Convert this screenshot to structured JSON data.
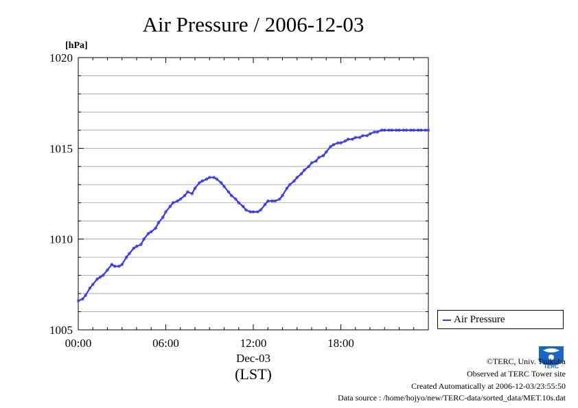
{
  "chart_data": {
    "type": "line",
    "title": "Air Pressure / 2006-12-03",
    "ylabel": "[hPa]",
    "xlabel": "(LST)",
    "x_sublabel": "Dec-03",
    "ylim": [
      1005,
      1020
    ],
    "xlim_hours": [
      0,
      24
    ],
    "y_ticks": [
      "1005",
      "1010",
      "1015",
      "1020"
    ],
    "x_ticks": [
      "00:00",
      "06:00",
      "12:00",
      "18:00"
    ],
    "grid": true,
    "legend_position": "right-bottom",
    "series": [
      {
        "name": "Air Pressure",
        "color": "#3333ff",
        "x_hours": [
          0.0,
          0.3,
          0.5,
          0.8,
          1.0,
          1.3,
          1.5,
          1.7,
          2.0,
          2.3,
          2.5,
          2.8,
          3.0,
          3.3,
          3.5,
          3.8,
          4.0,
          4.3,
          4.5,
          4.8,
          5.0,
          5.3,
          5.5,
          5.8,
          6.0,
          6.3,
          6.5,
          6.8,
          7.0,
          7.3,
          7.5,
          7.8,
          8.0,
          8.3,
          8.5,
          8.8,
          9.0,
          9.3,
          9.5,
          9.8,
          10.0,
          10.3,
          10.5,
          10.8,
          11.0,
          11.3,
          11.5,
          11.8,
          12.0,
          12.3,
          12.5,
          12.8,
          13.0,
          13.3,
          13.5,
          13.8,
          14.0,
          14.3,
          14.5,
          14.8,
          15.0,
          15.3,
          15.5,
          15.8,
          16.0,
          16.3,
          16.5,
          16.8,
          17.0,
          17.3,
          17.5,
          17.8,
          18.0,
          18.3,
          18.5,
          18.8,
          19.0,
          19.3,
          19.5,
          19.8,
          20.0,
          20.3,
          20.5,
          20.8,
          21.0,
          21.3,
          21.5,
          21.8,
          22.0,
          22.3,
          22.5,
          22.8,
          23.0,
          23.3,
          23.5,
          23.8,
          24.0
        ],
        "values": [
          1006.6,
          1006.7,
          1006.9,
          1007.3,
          1007.5,
          1007.8,
          1007.9,
          1008.0,
          1008.3,
          1008.6,
          1008.5,
          1008.5,
          1008.6,
          1009.0,
          1009.2,
          1009.5,
          1009.6,
          1009.7,
          1010.0,
          1010.3,
          1010.4,
          1010.6,
          1010.9,
          1011.2,
          1011.5,
          1011.8,
          1012.0,
          1012.1,
          1012.2,
          1012.4,
          1012.6,
          1012.5,
          1012.8,
          1013.1,
          1013.2,
          1013.3,
          1013.4,
          1013.4,
          1013.3,
          1013.1,
          1012.9,
          1012.6,
          1012.4,
          1012.2,
          1012.0,
          1011.8,
          1011.6,
          1011.5,
          1011.5,
          1011.5,
          1011.6,
          1011.9,
          1012.1,
          1012.1,
          1012.1,
          1012.2,
          1012.4,
          1012.8,
          1013.0,
          1013.2,
          1013.4,
          1013.6,
          1013.8,
          1014.0,
          1014.2,
          1014.3,
          1014.5,
          1014.6,
          1014.8,
          1015.1,
          1015.2,
          1015.3,
          1015.3,
          1015.4,
          1015.5,
          1015.5,
          1015.6,
          1015.6,
          1015.7,
          1015.7,
          1015.8,
          1015.9,
          1015.9,
          1016.0,
          1016.0,
          1016.0,
          1016.0,
          1016.0,
          1016.0,
          1016.0,
          1016.0,
          1016.0,
          1016.0,
          1016.0,
          1016.0,
          1016.0,
          1016.0
        ]
      }
    ]
  },
  "footer": {
    "copyright": "©TERC, Univ. Tsukuba",
    "observed": "Observed at TERC Tower site",
    "created": "Created Automatically at 2006-12-03/23:55:50",
    "source": "Data source : /home/hojyo/new/TERC-data/sorted_data/MET.10s.dat"
  },
  "logo": {
    "text": "TERC",
    "color": "#1a66c8"
  }
}
